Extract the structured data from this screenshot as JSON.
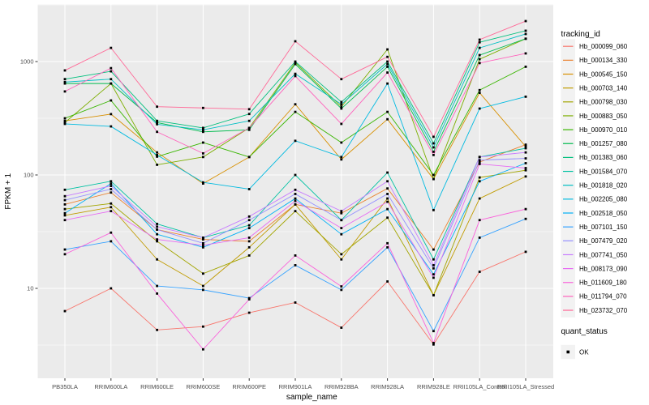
{
  "chart_data": {
    "type": "line",
    "xlabel": "sample_name",
    "ylabel": "FPKM + 1",
    "y_scale": "log10",
    "y_ticks": [
      10,
      100,
      1000
    ],
    "y_minor": [
      3.162,
      31.62,
      316.2,
      3162
    ],
    "ylim": [
      1.6,
      3160
    ],
    "grid": true,
    "panel_bg": "#EBEBEB",
    "grid_color": "#FFFFFF",
    "tick_label_color": "#4d4d4d",
    "point_color": "#000000",
    "legend_position": "right",
    "legend_title": "tracking_id",
    "quant_legend": {
      "title": "quant_status",
      "item_label": "OK",
      "shape": "square",
      "color": "#000000"
    },
    "categories": [
      "PB350LA",
      "RRIM600LA",
      "RRIM600LE",
      "RRIM600SE",
      "RRIM600PE",
      "RRIM901LA",
      "RRIM928BA",
      "RRIM928LA",
      "RRIM928LE",
      "RRII105LA_Control",
      "RRII105LA_Stressed"
    ],
    "series": [
      {
        "name": "Hb_000099_060",
        "color": "#F8766D",
        "values": [
          6.3,
          10,
          4.3,
          4.6,
          6.1,
          7.5,
          4.5,
          11.5,
          3.2,
          14,
          21
        ]
      },
      {
        "name": "Hb_000134_330",
        "color": "#EA8331",
        "values": [
          55,
          70,
          33,
          27,
          26,
          55,
          46,
          76,
          22,
          130,
          185
        ]
      },
      {
        "name": "Hb_000545_150",
        "color": "#D89000",
        "values": [
          300,
          344,
          158,
          84,
          144,
          420,
          137,
          310,
          92,
          530,
          178
        ]
      },
      {
        "name": "Hb_000703_140",
        "color": "#C09B00",
        "values": [
          44,
          52,
          18,
          10.5,
          23,
          55,
          18,
          62,
          8.7,
          62,
          97
        ]
      },
      {
        "name": "Hb_000798_030",
        "color": "#A3A500",
        "values": [
          50,
          56,
          26,
          13.5,
          19.5,
          48,
          20,
          42,
          8.7,
          95,
          110
        ]
      },
      {
        "name": "Hb_000883_050",
        "color": "#7CAE00",
        "values": [
          290,
          640,
          123,
          144,
          260,
          980,
          400,
          1280,
          92,
          1050,
          1590
        ]
      },
      {
        "name": "Hb_000970_010",
        "color": "#39B600",
        "values": [
          316,
          454,
          145,
          193,
          144,
          360,
          193,
          360,
          100,
          560,
          900
        ]
      },
      {
        "name": "Hb_001257_080",
        "color": "#00BB4E",
        "values": [
          640,
          640,
          290,
          240,
          250,
          950,
          385,
          900,
          160,
          1140,
          1590
        ]
      },
      {
        "name": "Hb_001383_060",
        "color": "#00BF7D",
        "values": [
          700,
          820,
          300,
          260,
          345,
          1000,
          440,
          1000,
          190,
          1480,
          1870
        ]
      },
      {
        "name": "Hb_001584_070",
        "color": "#00C1A3",
        "values": [
          74,
          88,
          37,
          28,
          36,
          100,
          40,
          105,
          18,
          144,
          172
        ]
      },
      {
        "name": "Hb_001818_020",
        "color": "#00BFC4",
        "values": [
          660,
          700,
          280,
          250,
          300,
          780,
          420,
          950,
          175,
          1320,
          1750
        ]
      },
      {
        "name": "Hb_002205_080",
        "color": "#00BAE0",
        "values": [
          282,
          268,
          150,
          86,
          75,
          200,
          144,
          640,
          49,
          385,
          490
        ]
      },
      {
        "name": "Hb_002518_050",
        "color": "#00B0F6",
        "values": [
          46,
          84,
          30,
          23,
          34,
          62,
          30,
          50,
          13.3,
          88,
          127
        ]
      },
      {
        "name": "Hb_007101_150",
        "color": "#35A2FF",
        "values": [
          22,
          26,
          10.5,
          9.7,
          8.2,
          16,
          9.7,
          23,
          4.2,
          28,
          41
        ]
      },
      {
        "name": "Hb_007479_020",
        "color": "#9590FF",
        "values": [
          60,
          75,
          33,
          25,
          40,
          68,
          40,
          68,
          15,
          135,
          140
        ]
      },
      {
        "name": "Hb_007741_050",
        "color": "#C77CFF",
        "values": [
          65,
          80,
          35,
          28,
          43,
          74,
          48,
          88,
          16,
          144,
          158
        ]
      },
      {
        "name": "Hb_008173_090",
        "color": "#E76BF3",
        "values": [
          40,
          48,
          27,
          24,
          28,
          59,
          34,
          58,
          12.4,
          125,
          115
        ]
      },
      {
        "name": "Hb_011609_180",
        "color": "#FA62DB",
        "values": [
          20,
          31,
          9,
          2.9,
          8,
          19.5,
          10.4,
          25,
          3.3,
          40,
          50
        ]
      },
      {
        "name": "Hb_011794_070",
        "color": "#FF62BC",
        "values": [
          545,
          875,
          240,
          155,
          260,
          745,
          282,
          800,
          150,
          970,
          1180
        ]
      },
      {
        "name": "Hb_023732_070",
        "color": "#FF6A98",
        "values": [
          835,
          1320,
          400,
          390,
          380,
          1510,
          700,
          1100,
          217,
          1560,
          2275
        ]
      }
    ]
  }
}
